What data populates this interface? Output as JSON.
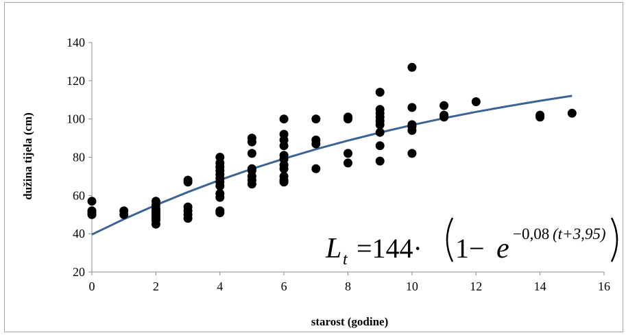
{
  "chart_data": {
    "type": "scatter",
    "title": "",
    "xlabel": "starost (godine)",
    "ylabel": "dužina tijela (cm)",
    "xlim": [
      0,
      16
    ],
    "ylim": [
      20,
      140
    ],
    "x_ticks": [
      0,
      2,
      4,
      6,
      8,
      10,
      12,
      14,
      16
    ],
    "y_ticks": [
      20,
      40,
      60,
      80,
      100,
      120,
      140
    ],
    "grid": false,
    "legend": "none",
    "series": [
      {
        "type": "scatter",
        "color": "#000000",
        "points": [
          [
            0,
            57
          ],
          [
            0,
            52
          ],
          [
            0,
            51
          ],
          [
            0,
            50
          ],
          [
            1,
            52
          ],
          [
            1,
            50
          ],
          [
            2,
            57
          ],
          [
            2,
            55
          ],
          [
            2,
            53
          ],
          [
            2,
            52
          ],
          [
            2,
            51
          ],
          [
            2,
            50
          ],
          [
            2,
            49
          ],
          [
            2,
            48
          ],
          [
            2,
            47
          ],
          [
            2,
            45
          ],
          [
            3,
            68
          ],
          [
            3,
            67
          ],
          [
            3,
            54
          ],
          [
            3,
            52
          ],
          [
            3,
            50
          ],
          [
            3,
            48
          ],
          [
            4,
            80
          ],
          [
            4,
            77
          ],
          [
            4,
            75
          ],
          [
            4,
            73
          ],
          [
            4,
            71
          ],
          [
            4,
            69
          ],
          [
            4,
            67
          ],
          [
            4,
            65
          ],
          [
            4,
            61
          ],
          [
            4,
            59
          ],
          [
            4,
            52
          ],
          [
            4,
            51
          ],
          [
            5,
            90
          ],
          [
            5,
            88
          ],
          [
            5,
            82
          ],
          [
            5,
            74
          ],
          [
            5,
            73
          ],
          [
            5,
            70
          ],
          [
            5,
            68
          ],
          [
            5,
            66
          ],
          [
            6,
            100
          ],
          [
            6,
            92
          ],
          [
            6,
            89
          ],
          [
            6,
            86
          ],
          [
            6,
            81
          ],
          [
            6,
            79
          ],
          [
            6,
            76
          ],
          [
            6,
            74
          ],
          [
            6,
            70
          ],
          [
            6,
            68
          ],
          [
            6,
            67
          ],
          [
            7,
            100
          ],
          [
            7,
            89
          ],
          [
            7,
            87
          ],
          [
            7,
            74
          ],
          [
            8,
            101
          ],
          [
            8,
            100
          ],
          [
            8,
            82
          ],
          [
            8,
            77
          ],
          [
            9,
            114
          ],
          [
            9,
            105
          ],
          [
            9,
            103
          ],
          [
            9,
            101
          ],
          [
            9,
            99
          ],
          [
            9,
            97
          ],
          [
            9,
            93
          ],
          [
            9,
            86
          ],
          [
            9,
            78
          ],
          [
            10,
            127
          ],
          [
            10,
            106
          ],
          [
            10,
            97
          ],
          [
            10,
            96
          ],
          [
            10,
            94
          ],
          [
            10,
            82
          ],
          [
            11,
            107
          ],
          [
            11,
            102
          ],
          [
            11,
            101
          ],
          [
            12,
            109
          ],
          [
            14,
            102
          ],
          [
            14,
            101
          ],
          [
            15,
            103
          ]
        ]
      },
      {
        "type": "line",
        "color": "#3b6494",
        "model": {
          "Linf": 144,
          "k": 0.08,
          "t0": -3.95
        },
        "x": [
          0,
          1,
          2,
          3,
          4,
          5,
          6,
          7,
          8,
          9,
          10,
          11,
          12,
          13,
          14,
          15
        ],
        "values": [
          39.6,
          47.6,
          55.0,
          61.8,
          68.1,
          73.9,
          79.2,
          84.2,
          88.7,
          92.9,
          96.8,
          100.4,
          103.7,
          106.7,
          109.5,
          112.1
        ]
      }
    ],
    "annotation": {
      "L": "L",
      "sub": "t",
      "eq": "=144·",
      "one_minus": "1−",
      "e": "e",
      "exp": "−0,08",
      "exp_paren": "(t+3,95)"
    }
  }
}
